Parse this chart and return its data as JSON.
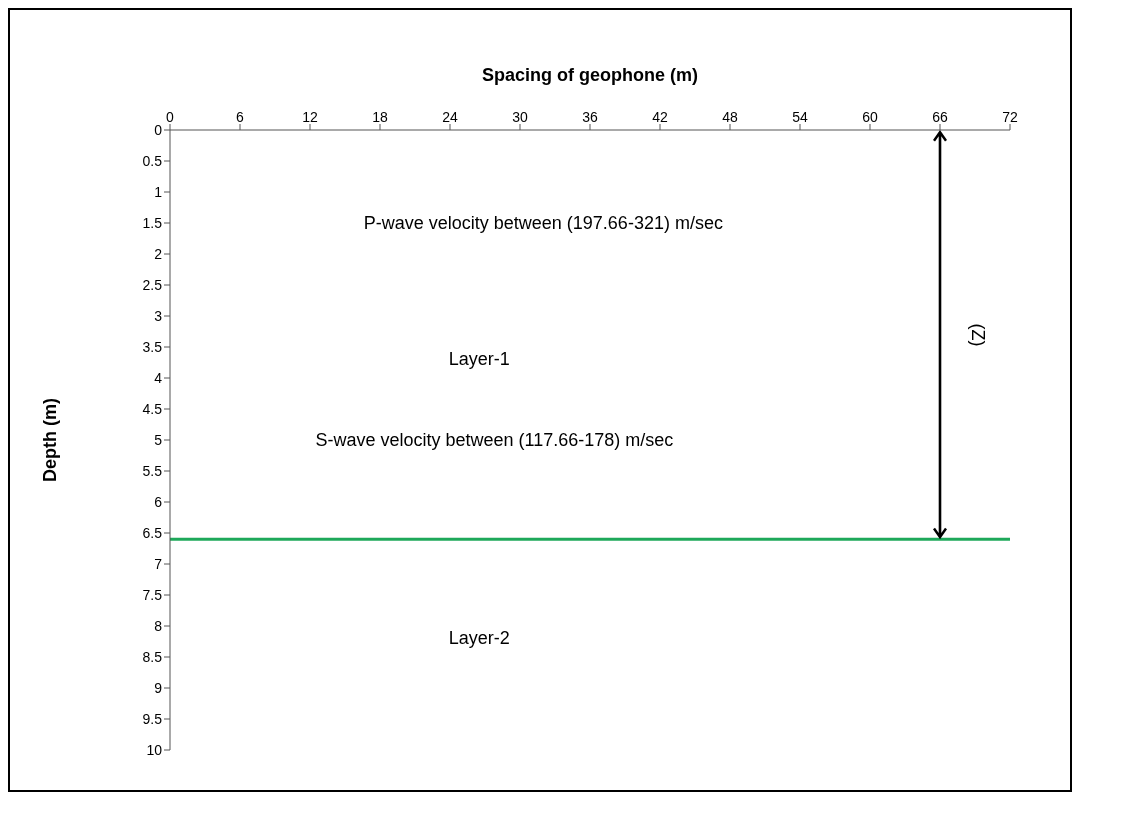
{
  "chart_data": {
    "type": "line",
    "xlabel": "Spacing of geophone (m)",
    "ylabel": "Depth (m)",
    "x": [
      0,
      72
    ],
    "series": [
      {
        "color": "#1ea85a",
        "values": [
          6.6,
          6.6
        ]
      }
    ],
    "xlim": [
      0,
      72
    ],
    "xticks": [
      0,
      6,
      12,
      18,
      24,
      30,
      36,
      42,
      48,
      54,
      60,
      66,
      72
    ],
    "ylim": [
      10,
      0
    ],
    "yticks": [
      0,
      0.5,
      1,
      1.5,
      2,
      2.5,
      3,
      3.5,
      4,
      4.5,
      5,
      5.5,
      6,
      6.5,
      7,
      7.5,
      8,
      8.5,
      9,
      9.5,
      10
    ],
    "grid": false,
    "legend": false,
    "marker": "none",
    "line_style": "solid",
    "annotations": [
      "P-wave velocity between (197.66-321) m/sec",
      "Layer-1",
      "S-wave velocity between (117.66-178) m/sec",
      "Layer-2",
      "(Z)"
    ]
  }
}
